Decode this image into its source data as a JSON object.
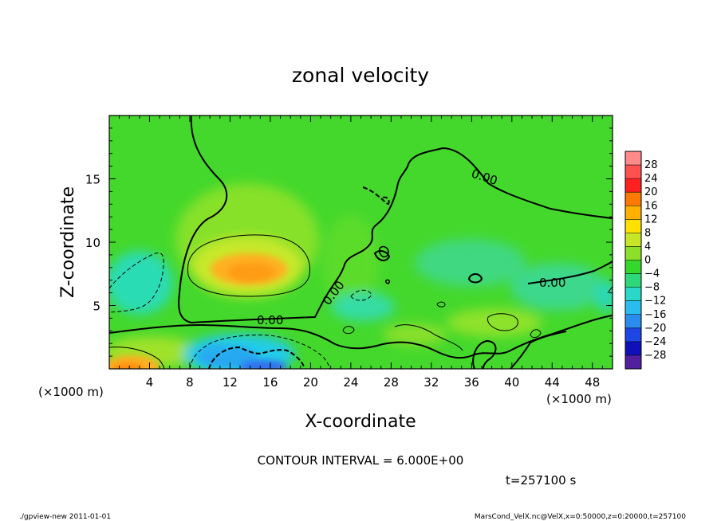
{
  "chart_data": {
    "type": "heatmap",
    "title": "zonal velocity",
    "xlabel": "X-coordinate",
    "ylabel": "Z-coordinate",
    "x_unit": "(×1000 m)",
    "y_unit": "(×1000 m)",
    "xlim": [
      0,
      50
    ],
    "ylim": [
      0,
      20
    ],
    "x_ticks": [
      4,
      8,
      12,
      16,
      20,
      24,
      28,
      32,
      36,
      40,
      44,
      48
    ],
    "y_ticks": [
      5,
      10,
      15
    ],
    "colorbar_levels": [
      28,
      24,
      20,
      16,
      12,
      8,
      4,
      0,
      -4,
      -8,
      -12,
      -16,
      -20,
      -24,
      -28
    ],
    "colorbar_labels": [
      "28",
      "24",
      "20",
      "16",
      "12",
      "8",
      "4",
      "0",
      "−4",
      "−8",
      "−12",
      "−16",
      "−20",
      "−24",
      "−28"
    ],
    "contour_interval_text": "CONTOUR INTERVAL = 6.000E+00",
    "time_text": "t=257100 s",
    "contour_labels": [
      "0.00",
      "0.00",
      "0.00",
      "0.00"
    ],
    "features": [
      {
        "x": 13,
        "z": 8.2,
        "value": 18
      },
      {
        "x": 2,
        "z": 0.5,
        "value": 18
      },
      {
        "x": 14.5,
        "z": 1.0,
        "value": -14
      },
      {
        "x": 2,
        "z": 7.5,
        "value": -7
      },
      {
        "x": 26,
        "z": 6.2,
        "value": -6
      }
    ]
  },
  "footer": {
    "left": "./gpview-new  2011-01-01",
    "right": "MarsCond_VelX.nc@VelX,x=0:50000,z=0:20000,t=257100"
  }
}
